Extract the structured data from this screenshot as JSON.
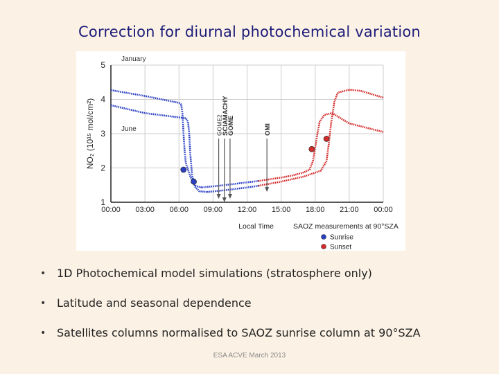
{
  "slide": {
    "title": "Correction for diurnal photochemical variation",
    "bullets": [
      "1D Photochemical model simulations (stratosphere only)",
      "Latitude and seasonal dependence",
      "Satellites columns normalised to SAOZ sunrise column at 90°SZA"
    ],
    "footer": "ESA ACVE March 2013"
  },
  "chart_data": {
    "type": "line",
    "title": "",
    "xlabel": "Local Time",
    "ylabel": "NO₂ (10¹⁵ mol/cm²)",
    "xlim": [
      0,
      24
    ],
    "ylim": [
      1,
      5
    ],
    "x_tick_labels": [
      "00:00",
      "03:00",
      "06:00",
      "09:00",
      "12:00",
      "15:00",
      "18:00",
      "21:00",
      "00:00"
    ],
    "x_tick_values": [
      0,
      3,
      6,
      9,
      12,
      15,
      18,
      21,
      24
    ],
    "y_ticks": [
      1,
      2,
      3,
      4,
      5
    ],
    "colors": {
      "sunrise": "#2a3fc4",
      "sunset": "#d42a2a",
      "grid": "#cccccc"
    },
    "series": [
      {
        "name": "January",
        "label_position": "upper-left",
        "segments": [
          {
            "part": "night-am",
            "color": "sunrise",
            "points": [
              [
                0,
                4.27
              ],
              [
                3,
                4.1
              ],
              [
                6,
                3.9
              ],
              [
                6.2,
                3.85
              ],
              [
                6.3,
                3.6
              ],
              [
                6.4,
                3.0
              ],
              [
                6.5,
                2.5
              ],
              [
                6.6,
                2.15
              ],
              [
                6.8,
                1.95
              ],
              [
                7.0,
                1.75
              ],
              [
                7.2,
                1.6
              ],
              [
                7.5,
                1.47
              ],
              [
                8.0,
                1.43
              ]
            ]
          },
          {
            "part": "day",
            "color": "sunrise",
            "points": [
              [
                8.0,
                1.43
              ],
              [
                10,
                1.5
              ],
              [
                12,
                1.58
              ],
              [
                13,
                1.62
              ]
            ]
          },
          {
            "part": "day-pm",
            "color": "sunset",
            "points": [
              [
                13,
                1.62
              ],
              [
                15,
                1.72
              ],
              [
                16,
                1.78
              ],
              [
                17,
                1.87
              ],
              [
                17.5,
                1.95
              ],
              [
                17.8,
                2.2
              ],
              [
                18.0,
                2.6
              ],
              [
                18.2,
                3.0
              ],
              [
                18.4,
                3.35
              ],
              [
                18.8,
                3.55
              ],
              [
                19.5,
                3.6
              ],
              [
                21,
                3.3
              ],
              [
                24,
                3.05
              ]
            ]
          }
        ]
      },
      {
        "name": "June",
        "label_position": "left",
        "segments": [
          {
            "part": "night-am",
            "color": "sunrise",
            "points": [
              [
                0,
                3.83
              ],
              [
                3,
                3.6
              ],
              [
                6.6,
                3.45
              ],
              [
                6.8,
                3.35
              ],
              [
                6.9,
                3.0
              ],
              [
                7.0,
                2.4
              ],
              [
                7.15,
                1.8
              ],
              [
                7.4,
                1.45
              ],
              [
                7.8,
                1.32
              ],
              [
                8.5,
                1.3
              ]
            ]
          },
          {
            "part": "day",
            "color": "sunrise",
            "points": [
              [
                8.5,
                1.3
              ],
              [
                10,
                1.35
              ],
              [
                12,
                1.43
              ],
              [
                13,
                1.48
              ]
            ]
          },
          {
            "part": "day-pm",
            "color": "sunset",
            "points": [
              [
                13,
                1.48
              ],
              [
                15,
                1.6
              ],
              [
                17,
                1.75
              ],
              [
                18.5,
                1.92
              ],
              [
                19.0,
                2.2
              ],
              [
                19.2,
                2.7
              ],
              [
                19.4,
                3.3
              ],
              [
                19.7,
                3.95
              ],
              [
                20.0,
                4.2
              ],
              [
                21,
                4.28
              ],
              [
                22,
                4.25
              ],
              [
                24,
                4.05
              ]
            ]
          }
        ]
      }
    ],
    "markers": [
      {
        "series": "January",
        "event": "Sunrise",
        "x": 6.4,
        "y": 1.95,
        "color": "sunrise"
      },
      {
        "series": "June",
        "event": "Sunrise",
        "x": 7.3,
        "y": 1.6,
        "color": "sunrise"
      },
      {
        "series": "January",
        "event": "Sunset",
        "x": 17.7,
        "y": 2.55,
        "color": "sunset"
      },
      {
        "series": "June",
        "event": "Sunset",
        "x": 19.0,
        "y": 2.85,
        "color": "sunset"
      }
    ],
    "overpasses": [
      {
        "label": "GOME2",
        "time": 9.5,
        "y_arrow_tip": 1.1
      },
      {
        "label": "SCIAMACHY",
        "time": 10.0,
        "y_arrow_tip": 1.0
      },
      {
        "label": "GOME",
        "time": 10.5,
        "y_arrow_tip": 1.1
      },
      {
        "label": "OMI",
        "time": 13.75,
        "y_arrow_tip": 1.3
      }
    ],
    "legend": {
      "title": "SAOZ  measurements  at 90°SZA",
      "position": "bottom-right",
      "items": [
        {
          "label": "Sunrise",
          "color": "sunrise"
        },
        {
          "label": "Sunset",
          "color": "sunset"
        }
      ]
    }
  }
}
